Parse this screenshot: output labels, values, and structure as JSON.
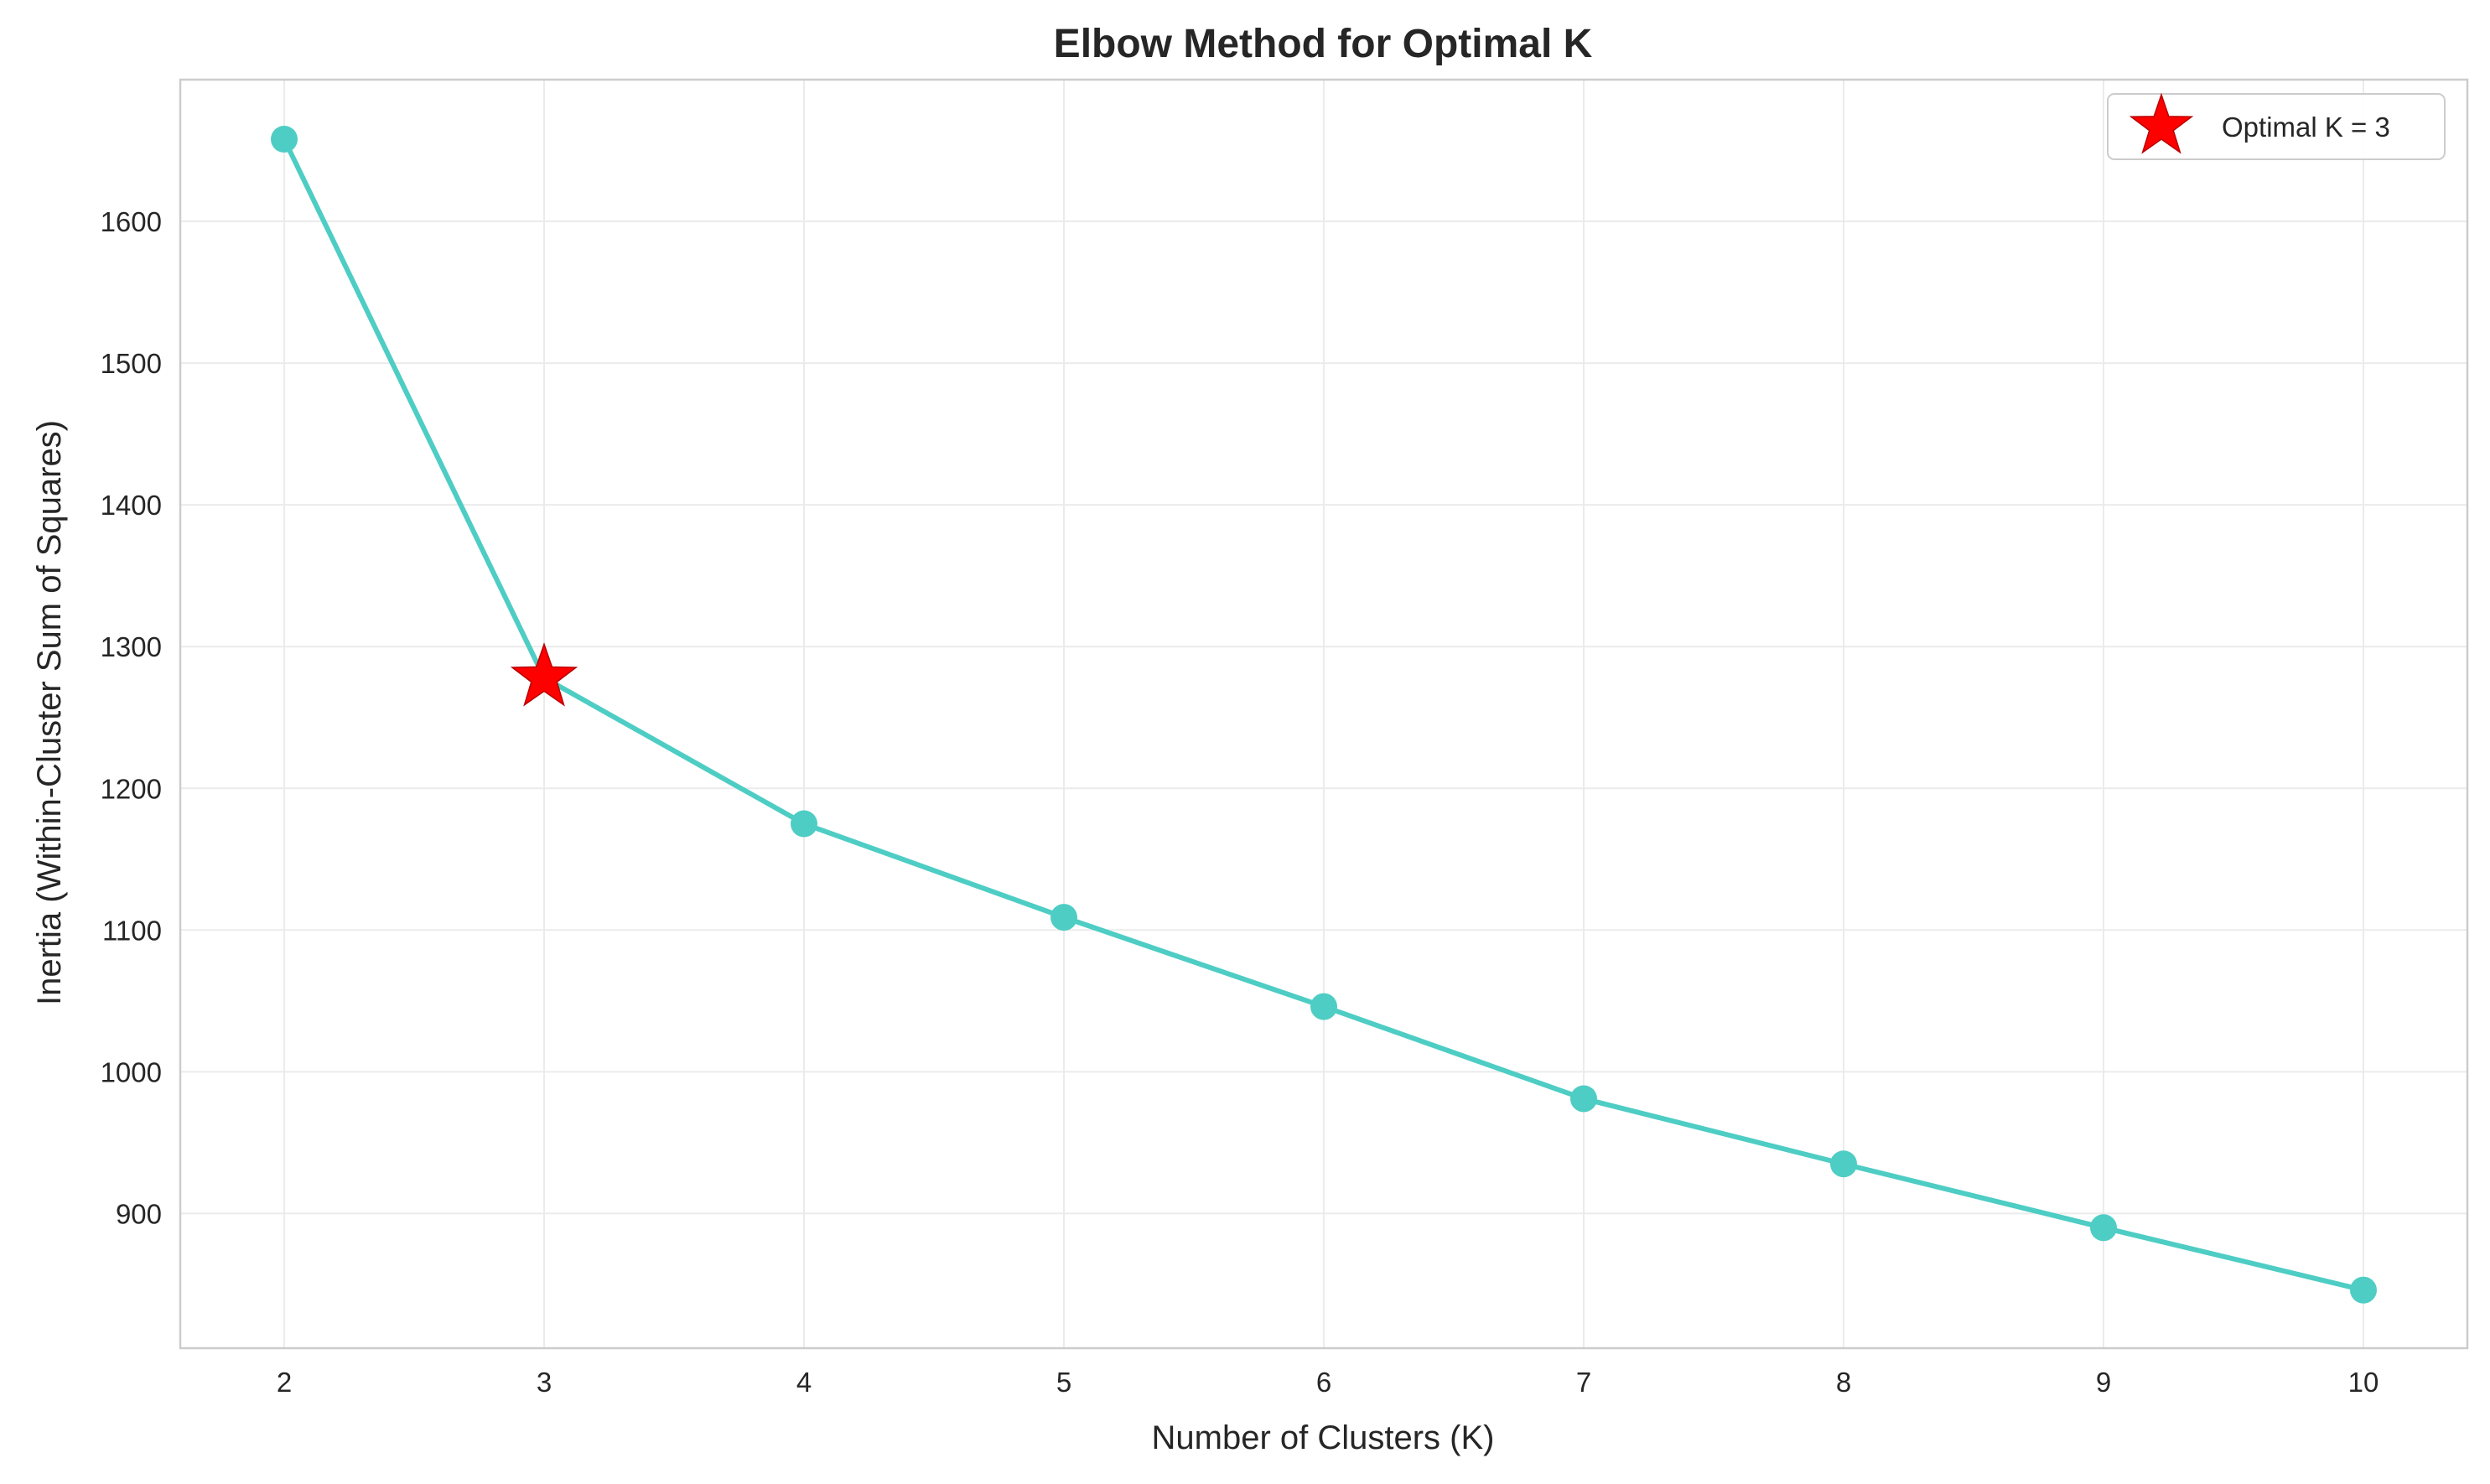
{
  "chart_data": {
    "type": "line",
    "title": "Elbow Method for Optimal K",
    "xlabel": "Number of Clusters (K)",
    "ylabel": "Inertia (Within-Cluster Sum of Squares)",
    "x": [
      2,
      3,
      4,
      5,
      6,
      7,
      8,
      9,
      10
    ],
    "xlim": [
      1.6,
      10.4
    ],
    "ylim": [
      805,
      1700
    ],
    "xticks": [
      2,
      3,
      4,
      5,
      6,
      7,
      8,
      9,
      10
    ],
    "yticks": [
      900,
      1000,
      1100,
      1200,
      1300,
      1400,
      1500,
      1600
    ],
    "grid": true,
    "series": [
      {
        "values": [
          1658,
          1278,
          1175,
          1109,
          1046,
          981,
          935,
          890,
          846
        ],
        "color": "#4ecdc4",
        "marker": "circle"
      }
    ],
    "highlight": {
      "label": "Optimal K = 3",
      "x": 3,
      "y": 1278,
      "marker": "star",
      "color": "#ff0000"
    },
    "legend": {
      "placement": "top-right",
      "entries": [
        "Optimal K = 3"
      ]
    }
  }
}
